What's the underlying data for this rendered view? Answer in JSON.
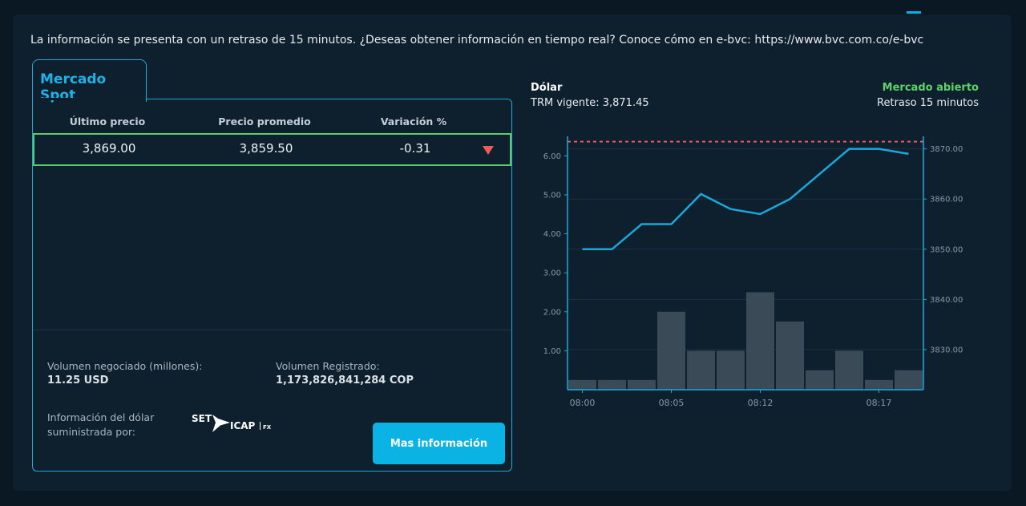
{
  "notice": "La información se presenta con un retraso de 15 minutos. ¿Deseas obtener información en tiempo real? Conoce cómo en e-bvc: https://www.bvc.com.co/e-bvc",
  "spot": {
    "tab_label": "Mercado Spot",
    "headers": [
      "Último precio",
      "Precio promedio",
      "Variación %"
    ],
    "row": {
      "last_price": "3,869.00",
      "avg_price": "3,859.50",
      "variation": "-0.31"
    },
    "variation_direction": "down",
    "arrow_color": "#ef5b5b",
    "volume_label": "Volumen negociado (millones):",
    "volume_value": "11.25 USD",
    "registered_label": "Volumen Registrado:",
    "registered_value": "1,173,826,841,284 COP",
    "provider_label_line1": "Información del dólar",
    "provider_label_line2": "suministrada por:",
    "provider_logo": {
      "set": "SET",
      "icap": "ICAP",
      "fx": "FX"
    },
    "more_button": "Mas información"
  },
  "chart_header": {
    "title": "Dólar",
    "subtitle": "TRM vigente: 3,871.45",
    "status": "Mercado abierto",
    "delay": "Retraso 15 minutos"
  },
  "colors": {
    "accent": "#1aa9dc",
    "open_status": "#5dd46a",
    "line": "#19a8d9",
    "bars": "#3a4a57",
    "trm_line": "#e35d5d"
  },
  "chart_data": {
    "type": "line+bar",
    "x_ticks": [
      "08:00",
      "08:05",
      "08:12",
      "08:17"
    ],
    "x_tick_positions": [
      0,
      3,
      6,
      10
    ],
    "left_axis": {
      "ticks": [
        "1.00",
        "2.00",
        "3.00",
        "4.00",
        "5.00",
        "6.00"
      ],
      "range": [
        0,
        6.5
      ]
    },
    "right_axis": {
      "ticks": [
        "3830.00",
        "3840.00",
        "3850.00",
        "3860.00",
        "3870.00"
      ],
      "range": [
        3822,
        3872.5
      ]
    },
    "volume_bars": [
      0.25,
      0.25,
      0.25,
      2.0,
      1.0,
      1.0,
      2.5,
      1.75,
      0.5,
      1.0,
      0.25,
      0.5
    ],
    "price_line": {
      "x": [
        0.5,
        1.5,
        2.5,
        3.5,
        4.5,
        5.5,
        6.5,
        7.5,
        8.5,
        9.5,
        10.5,
        11.5
      ],
      "y": [
        3850,
        3850,
        3855,
        3855,
        3861,
        3858,
        3857,
        3860,
        3865,
        3870,
        3870,
        3869
      ]
    },
    "trm": 3871.45
  }
}
